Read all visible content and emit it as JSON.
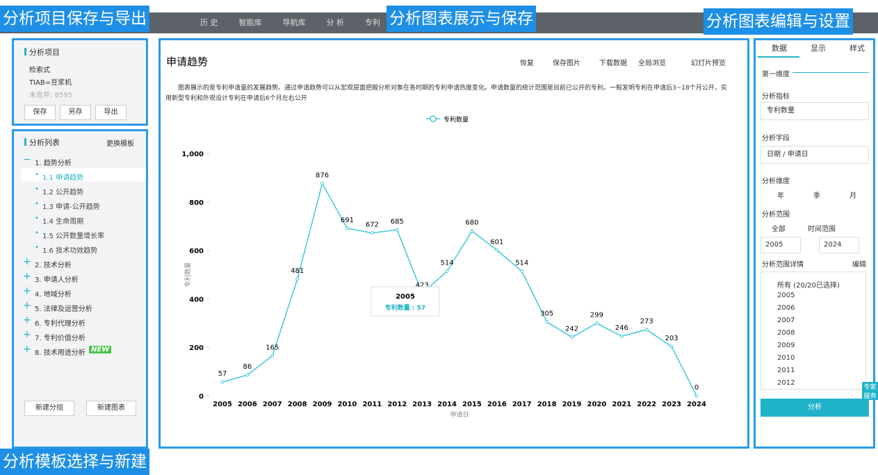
{
  "nav": [
    "历 史",
    "智能库",
    "导航库",
    "分 析",
    "专利"
  ],
  "annotations": [
    "分析项目保存与导出",
    "分析图表展示与保存",
    "分析图表编辑与设置",
    "分析模板选择与新建"
  ],
  "project": {
    "title": "分析项目",
    "lines": [
      "检索式",
      "TIAB=豆浆机",
      "未合并: 8595"
    ],
    "buttons": [
      "保存",
      "另存",
      "导出"
    ]
  },
  "list": {
    "title": "分析列表",
    "switch": "更换模板",
    "groups": [
      {
        "label": "1.  趋势分析",
        "items": [
          "1.1 申请趋势",
          "1.2 公开趋势",
          "1.3 申请-公开趋势",
          "1.4 生命周期",
          "1.5 公开数量增长率",
          "1.6 技术功效趋势"
        ]
      },
      {
        "label": "2.  技术分析"
      },
      {
        "label": "3.  申请人分析"
      },
      {
        "label": "4.  地域分析"
      },
      {
        "label": "5.  法律及运营分析"
      },
      {
        "label": "6.  专利代理分析"
      },
      {
        "label": "7.  专利价值分析"
      },
      {
        "label": "8.  技术用途分析",
        "badge": "NEW"
      }
    ],
    "buttons": [
      "新建分组",
      "新建图表"
    ]
  },
  "chart_panel": {
    "toolbar": [
      "恢复",
      "保存图片",
      "下载数据",
      "全局浏览",
      "幻灯片预览"
    ],
    "description": "图表展示的是专利申请量的发展趋势。通过申请趋势可以从宏观层面把握分析对象在各时期的专利申请热度变化。申请数量的统计范围是目前已公开的专利。一般发明专利在申请后3~18个月公开，实用新型专利和外观设计专利在申请后6个月左右公开"
  },
  "chart_data": {
    "type": "line",
    "title": "申请趋势",
    "xlabel": "申请日",
    "ylabel": "专利数量",
    "categories": [
      "2005",
      "2006",
      "2007",
      "2008",
      "2009",
      "2010",
      "2011",
      "2012",
      "2013",
      "2014",
      "2015",
      "2016",
      "2017",
      "2018",
      "2019",
      "2020",
      "2021",
      "2022",
      "2023",
      "2024"
    ],
    "series": [
      {
        "name": "专利数量",
        "color": "#3ec9d9",
        "values": [
          57,
          86,
          165,
          481,
          876,
          691,
          672,
          685,
          423,
          514,
          680,
          601,
          514,
          305,
          242,
          299,
          246,
          273,
          203,
          0
        ]
      }
    ],
    "ylim": [
      0,
      1000
    ],
    "yticks": [
      0,
      200,
      400,
      600,
      800,
      {
        "value": 1000,
        "label": "1,000"
      }
    ],
    "legend": "top",
    "tooltip": {
      "title": "2005",
      "text": "专利数量 : 57"
    }
  },
  "settings": {
    "tabs": [
      "数据",
      "显示",
      "样式"
    ],
    "dimension": "第一维度",
    "metric_label": "分析指标",
    "metric": "专利数量",
    "field_label": "分析字段",
    "field": "日期 / 申请日",
    "granularity_label": "分析维度",
    "granularity": [
      "年",
      "季",
      "月"
    ],
    "range_label": "分析范围",
    "range": [
      "全部",
      "时间范围"
    ],
    "from": "2005",
    "to": "2024",
    "detail_label": "分析范围详情",
    "edit": "编辑",
    "checklist": [
      "所有  (20/20已选择)",
      "2005",
      "2006",
      "2007",
      "2008",
      "2009",
      "2010",
      "2011",
      "2012"
    ],
    "button": "分析",
    "service": "专家服务"
  }
}
